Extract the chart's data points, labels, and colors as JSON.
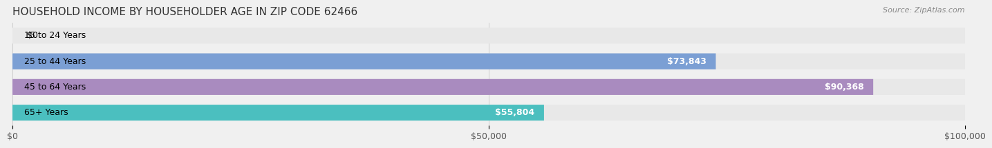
{
  "title": "HOUSEHOLD INCOME BY HOUSEHOLDER AGE IN ZIP CODE 62466",
  "source": "Source: ZipAtlas.com",
  "categories": [
    "15 to 24 Years",
    "25 to 44 Years",
    "45 to 64 Years",
    "65+ Years"
  ],
  "values": [
    0,
    73843,
    90368,
    55804
  ],
  "labels": [
    "$0",
    "$73,843",
    "$90,368",
    "$55,804"
  ],
  "bar_colors": [
    "#f08080",
    "#7b9fd4",
    "#a98bbf",
    "#4bbfbf"
  ],
  "background_color": "#f0f0f0",
  "bar_bg_color": "#e8e8e8",
  "xlim": [
    0,
    100000
  ],
  "xticks": [
    0,
    50000,
    100000
  ],
  "xtick_labels": [
    "$0",
    "$50,000",
    "$100,000"
  ],
  "title_fontsize": 11,
  "source_fontsize": 8,
  "label_fontsize": 9,
  "tick_fontsize": 9
}
